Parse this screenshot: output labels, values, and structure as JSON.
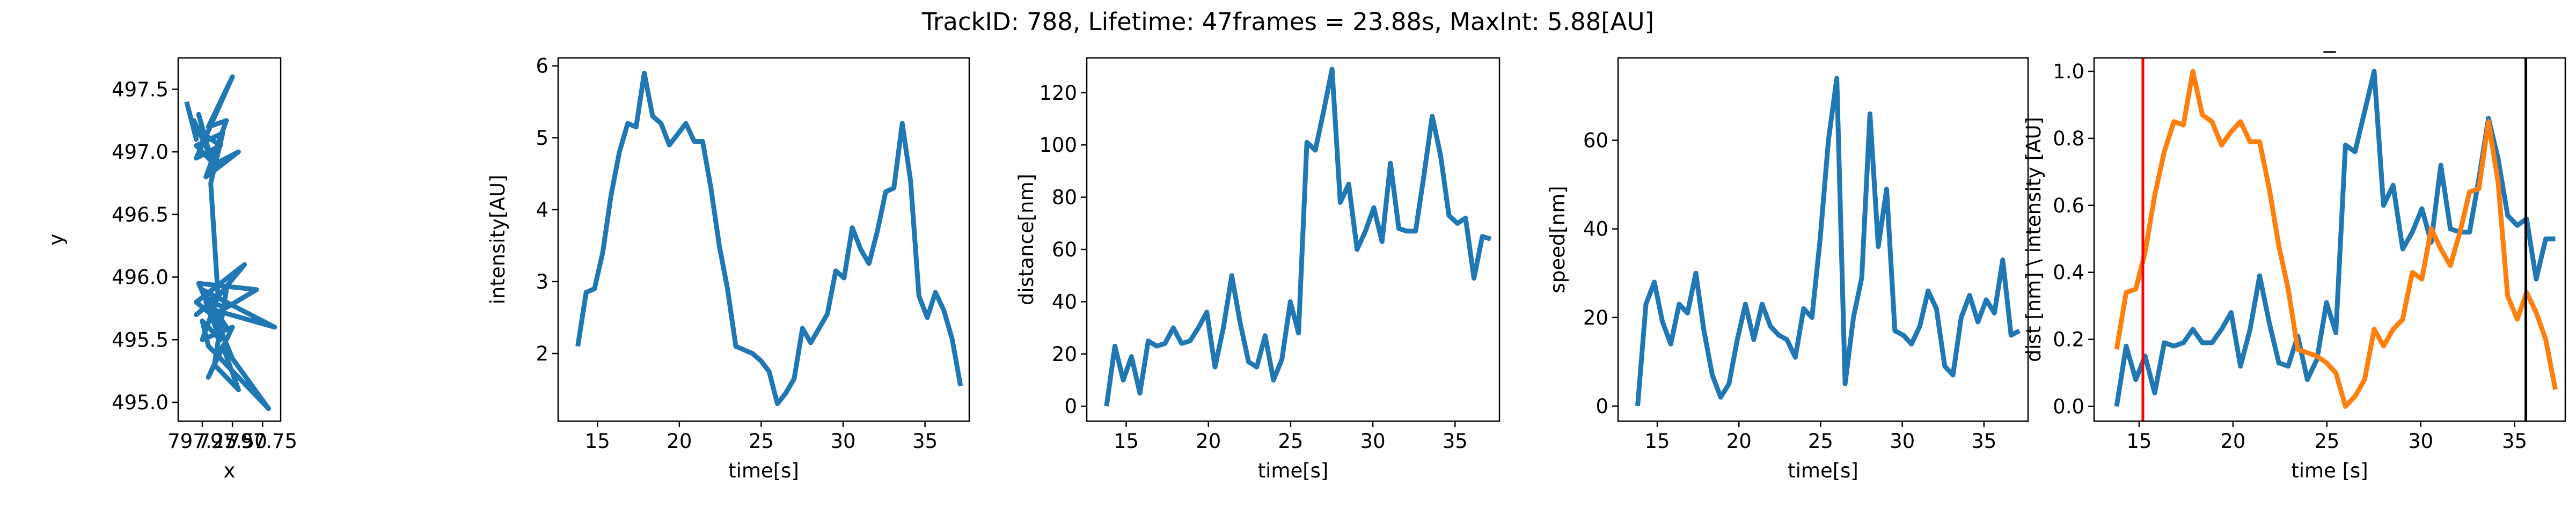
{
  "title": "TrackID: 788, Lifetime: 47frames = 23.88s, MaxInt: 5.88[AU]",
  "chart_data": [
    {
      "type": "line",
      "xlabel": "x",
      "ylabel": "y",
      "x": [
        797.12,
        797.2,
        797.18,
        797.3,
        797.22,
        797.35,
        797.25,
        797.4,
        797.2,
        797.5,
        797.3,
        797.45,
        797.28,
        797.55,
        797.35,
        797.2,
        797.42,
        797.32,
        797.38,
        797.3,
        797.6,
        797.2,
        797.45,
        797.25,
        797.85,
        797.3,
        797.4,
        797.22,
        797.7,
        797.35,
        797.5,
        797.8,
        797.3,
        797.25,
        797.4,
        797.28,
        797.45,
        797.35,
        797.55,
        797.42,
        797.3,
        797.5,
        797.25,
        797.38,
        797.2,
        797.33,
        797.45
      ],
      "series": [
        {
          "color": "#1f77b4",
          "values": [
            497.4,
            497.1,
            497.25,
            497.0,
            497.3,
            496.85,
            497.15,
            497.05,
            496.95,
            497.6,
            497.2,
            497.25,
            496.8,
            497.0,
            496.9,
            497.05,
            497.15,
            496.75,
            495.85,
            495.75,
            496.1,
            495.8,
            495.6,
            495.9,
            495.6,
            495.75,
            495.55,
            495.95,
            495.9,
            495.7,
            495.35,
            494.95,
            495.45,
            495.65,
            495.5,
            495.8,
            495.9,
            495.3,
            495.1,
            495.45,
            495.2,
            495.6,
            495.5,
            495.85,
            495.7,
            495.8,
            495.75
          ]
        }
      ],
      "xlim": [
        797.05,
        797.9
      ],
      "xticks": [
        797.25,
        {
          "value": 797.5,
          "label": "797.50"
        },
        797.75
      ],
      "ylim": [
        494.85,
        497.75
      ],
      "yticks": [
        {
          "value": 495,
          "label": "495.0"
        },
        495.5,
        {
          "value": 496,
          "label": "496.0"
        },
        496.5,
        {
          "value": 497,
          "label": "497.0"
        },
        497.5
      ]
    },
    {
      "type": "line",
      "xlabel": "time[s]",
      "ylabel": "intensity[AU]",
      "x": [
        13.8,
        14.31,
        14.82,
        15.32,
        15.83,
        16.34,
        16.85,
        17.36,
        17.86,
        18.37,
        18.88,
        19.39,
        19.9,
        20.4,
        20.91,
        21.42,
        21.93,
        22.44,
        22.94,
        23.45,
        23.96,
        24.47,
        24.98,
        25.48,
        25.99,
        26.5,
        27.01,
        27.52,
        28.02,
        28.53,
        29.04,
        29.55,
        30.06,
        30.56,
        31.07,
        31.58,
        32.09,
        32.6,
        33.1,
        33.61,
        34.12,
        34.63,
        35.14,
        35.64,
        36.15,
        36.66,
        37.17
      ],
      "series": [
        {
          "color": "#1f77b4",
          "values": [
            2.1,
            2.85,
            2.9,
            3.4,
            4.2,
            4.8,
            5.2,
            5.15,
            5.9,
            5.3,
            5.2,
            4.9,
            5.05,
            5.2,
            4.95,
            4.95,
            4.3,
            3.5,
            2.9,
            2.1,
            2.05,
            2.0,
            1.9,
            1.75,
            1.3,
            1.45,
            1.65,
            2.35,
            2.15,
            2.35,
            2.55,
            3.15,
            3.05,
            3.75,
            3.45,
            3.25,
            3.7,
            4.25,
            4.3,
            5.2,
            4.4,
            2.8,
            2.5,
            2.85,
            2.6,
            2.2,
            1.55
          ]
        }
      ],
      "xlim": [
        12.6,
        37.7
      ],
      "xticks": [
        15,
        20,
        25,
        30,
        35
      ],
      "ylim": [
        1.06,
        6.11
      ],
      "yticks": [
        2,
        3,
        4,
        5,
        6
      ]
    },
    {
      "type": "line",
      "xlabel": "time[s]",
      "ylabel": "distance[nm]",
      "x": [
        13.8,
        14.31,
        14.82,
        15.32,
        15.83,
        16.34,
        16.85,
        17.36,
        17.86,
        18.37,
        18.88,
        19.39,
        19.9,
        20.4,
        20.91,
        21.42,
        21.93,
        22.44,
        22.94,
        23.45,
        23.96,
        24.47,
        24.98,
        25.48,
        25.99,
        26.5,
        27.01,
        27.52,
        28.02,
        28.53,
        29.04,
        29.55,
        30.06,
        30.56,
        31.07,
        31.58,
        32.09,
        32.6,
        33.1,
        33.61,
        34.12,
        34.63,
        35.14,
        35.64,
        36.15,
        36.66,
        37.17
      ],
      "series": [
        {
          "color": "#1f77b4",
          "values": [
            0,
            23,
            10,
            19,
            5,
            25,
            23,
            24,
            30,
            24,
            25,
            30,
            36,
            15,
            30,
            50,
            32,
            17,
            15,
            27,
            10,
            18,
            40,
            28,
            101,
            98,
            113,
            129,
            78,
            85,
            60,
            67,
            76,
            63,
            93,
            68,
            67,
            67,
            88,
            111,
            96,
            73,
            70,
            72,
            49,
            65,
            64
          ]
        }
      ],
      "xlim": [
        12.6,
        37.7
      ],
      "xticks": [
        15,
        20,
        25,
        30,
        35
      ],
      "ylim": [
        -5.7,
        133.3
      ],
      "yticks": [
        0,
        20,
        40,
        60,
        80,
        100,
        120
      ]
    },
    {
      "type": "line",
      "xlabel": "time[s]",
      "ylabel": "speed[nm]",
      "x": [
        13.8,
        14.31,
        14.82,
        15.32,
        15.83,
        16.34,
        16.85,
        17.36,
        17.86,
        18.37,
        18.88,
        19.39,
        19.9,
        20.4,
        20.91,
        21.42,
        21.93,
        22.44,
        22.94,
        23.45,
        23.96,
        24.47,
        24.98,
        25.48,
        25.99,
        26.5,
        27.01,
        27.52,
        28.02,
        28.53,
        29.04,
        29.55,
        30.06,
        30.56,
        31.07,
        31.58,
        32.09,
        32.6,
        33.1,
        33.61,
        34.12,
        34.63,
        35.14,
        35.64,
        36.15,
        36.66,
        37.17
      ],
      "series": [
        {
          "color": "#1f77b4",
          "values": [
            0,
            23,
            28,
            19,
            14,
            23,
            21,
            30,
            17,
            7,
            2,
            5,
            15,
            23,
            15,
            23,
            18,
            16,
            15,
            11,
            22,
            20,
            38,
            60,
            74,
            5,
            20,
            29,
            66,
            36,
            49,
            17,
            16,
            14,
            18,
            26,
            22,
            9,
            7,
            20,
            25,
            19,
            24,
            21,
            33,
            16,
            17
          ]
        }
      ],
      "xlim": [
        12.6,
        37.7
      ],
      "xticks": [
        15,
        20,
        25,
        30,
        35
      ],
      "ylim": [
        -3.4,
        78.6
      ],
      "yticks": [
        0,
        20,
        40,
        60
      ]
    },
    {
      "type": "line",
      "title": "_",
      "xlabel": "time [s]",
      "ylabel": "dist [nm] \\ intensity [AU]",
      "x": [
        13.8,
        14.31,
        14.82,
        15.32,
        15.83,
        16.34,
        16.85,
        17.36,
        17.86,
        18.37,
        18.88,
        19.39,
        19.9,
        20.4,
        20.91,
        21.42,
        21.93,
        22.44,
        22.94,
        23.45,
        23.96,
        24.47,
        24.98,
        25.48,
        25.99,
        26.5,
        27.01,
        27.52,
        28.02,
        28.53,
        29.04,
        29.55,
        30.06,
        30.56,
        31.07,
        31.58,
        32.09,
        32.6,
        33.1,
        33.61,
        34.12,
        34.63,
        35.14,
        35.64,
        36.15,
        36.66,
        37.17
      ],
      "series": [
        {
          "color": "#1f77b4",
          "values": [
            0,
            0.18,
            0.08,
            0.15,
            0.04,
            0.19,
            0.18,
            0.19,
            0.23,
            0.19,
            0.19,
            0.23,
            0.28,
            0.12,
            0.23,
            0.39,
            0.25,
            0.13,
            0.12,
            0.21,
            0.08,
            0.14,
            0.31,
            0.22,
            0.78,
            0.76,
            0.88,
            1.0,
            0.6,
            0.66,
            0.47,
            0.52,
            0.59,
            0.49,
            0.72,
            0.53,
            0.52,
            0.52,
            0.68,
            0.86,
            0.74,
            0.57,
            0.54,
            0.56,
            0.38,
            0.5,
            0.5
          ]
        },
        {
          "color": "#ff7f0e",
          "values": [
            0.17,
            0.34,
            0.35,
            0.46,
            0.63,
            0.76,
            0.85,
            0.84,
            1.0,
            0.87,
            0.85,
            0.78,
            0.82,
            0.85,
            0.79,
            0.79,
            0.65,
            0.48,
            0.35,
            0.17,
            0.16,
            0.15,
            0.13,
            0.1,
            0,
            0.03,
            0.08,
            0.23,
            0.18,
            0.23,
            0.26,
            0.4,
            0.38,
            0.53,
            0.47,
            0.42,
            0.52,
            0.64,
            0.65,
            0.85,
            0.67,
            0.33,
            0.26,
            0.34,
            0.28,
            0.2,
            0.05
          ]
        }
      ],
      "vlines": [
        {
          "x": 15.2,
          "color": "#ff0000"
        },
        {
          "x": 35.6,
          "color": "#000000"
        }
      ],
      "xlim": [
        12.6,
        37.7
      ],
      "xticks": [
        15,
        20,
        25,
        30,
        35
      ],
      "ylim": [
        -0.044,
        1.04
      ],
      "yticks": [
        {
          "value": 0,
          "label": "0.0"
        },
        0.2,
        0.4,
        0.6,
        0.8,
        {
          "value": 1,
          "label": "1.0"
        }
      ]
    }
  ]
}
